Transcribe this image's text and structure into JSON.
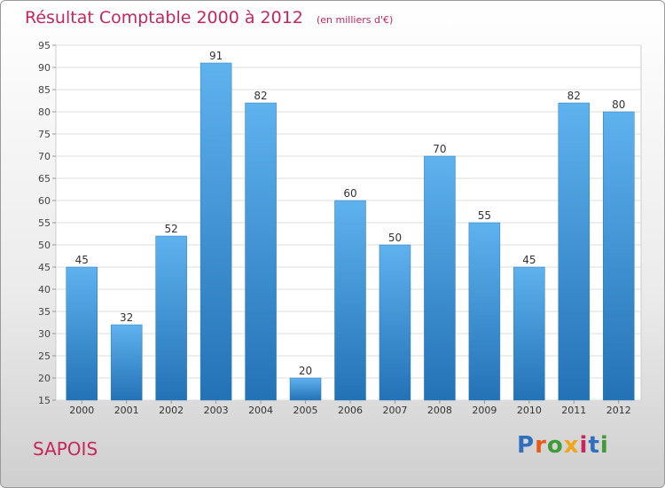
{
  "header": {
    "title": "Résultat Comptable 2000 à 2012",
    "subtitle": "(en milliers d'€)"
  },
  "footer": {
    "city": "SAPOIS",
    "brand": "Proxiti",
    "brand_colors": [
      "#2f6fbe",
      "#e85a1c",
      "#3f9a3a",
      "#f0a51a",
      "#c8265a",
      "#2f6fbe",
      "#3f9a3a"
    ]
  },
  "chart_data": {
    "type": "bar",
    "title": "Résultat Comptable 2000 à 2012",
    "unit": "(en milliers d'€)",
    "categories": [
      "2000",
      "2001",
      "2002",
      "2003",
      "2004",
      "2005",
      "2006",
      "2007",
      "2008",
      "2009",
      "2010",
      "2011",
      "2012"
    ],
    "values": [
      45,
      32,
      52,
      91,
      82,
      20,
      60,
      50,
      70,
      55,
      45,
      82,
      80
    ],
    "ylim": [
      15,
      95
    ],
    "ytick_step": 5,
    "xlabel": "",
    "ylabel": "",
    "grid": true,
    "bar_color": "#3d8fd6"
  }
}
